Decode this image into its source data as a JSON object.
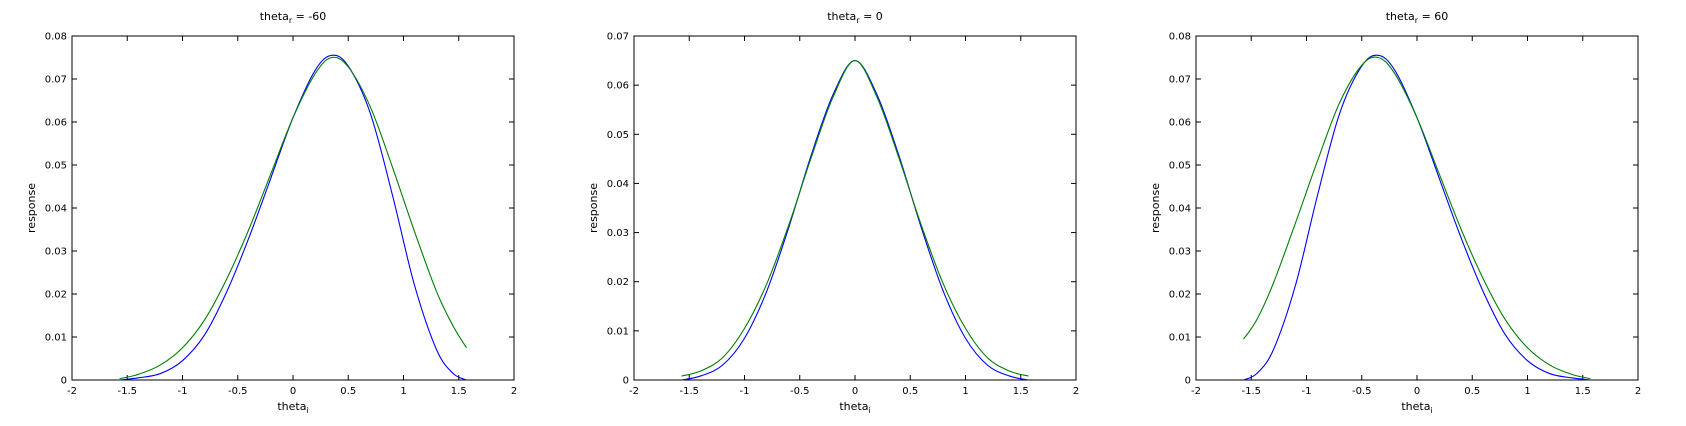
{
  "chart_data": [
    {
      "type": "line",
      "title": "theta",
      "title_sub": "r",
      "title_rest": " = -60",
      "xlabel": "theta",
      "xlabel_sub": "i",
      "ylabel": "response",
      "xlim": [
        -2,
        2
      ],
      "ylim": [
        0,
        0.08
      ],
      "xticks": [
        "-2",
        "-1.5",
        "-1",
        "-0.5",
        "0",
        "0.5",
        "1",
        "1.5",
        "2"
      ],
      "yticks": [
        "0",
        "0.01",
        "0.02",
        "0.03",
        "0.04",
        "0.05",
        "0.06",
        "0.07",
        "0.08"
      ],
      "grid": false,
      "series": [
        {
          "color": "#0000ff",
          "x": [
            -1.57,
            -1.4,
            -1.2,
            -1.0,
            -0.8,
            -0.6,
            -0.4,
            -0.2,
            0.0,
            0.2,
            0.35,
            0.5,
            0.7,
            0.9,
            1.1,
            1.3,
            1.45,
            1.57
          ],
          "y": [
            0.0,
            0.0005,
            0.0015,
            0.0045,
            0.0105,
            0.0205,
            0.033,
            0.047,
            0.061,
            0.072,
            0.0755,
            0.073,
            0.062,
            0.043,
            0.022,
            0.007,
            0.0015,
            0.0
          ]
        },
        {
          "color": "#008000",
          "x": [
            -1.57,
            -1.4,
            -1.2,
            -1.0,
            -0.8,
            -0.6,
            -0.4,
            -0.2,
            0.0,
            0.2,
            0.35,
            0.5,
            0.7,
            0.9,
            1.1,
            1.3,
            1.45,
            1.57
          ],
          "y": [
            0.0003,
            0.0013,
            0.0035,
            0.0075,
            0.014,
            0.0235,
            0.035,
            0.048,
            0.061,
            0.0712,
            0.075,
            0.0728,
            0.0635,
            0.0495,
            0.0345,
            0.0205,
            0.0125,
            0.0075
          ]
        }
      ]
    },
    {
      "type": "line",
      "title": "theta",
      "title_sub": "r",
      "title_rest": " = 0",
      "xlabel": "theta",
      "xlabel_sub": "i",
      "ylabel": "response",
      "xlim": [
        -2,
        2
      ],
      "ylim": [
        0,
        0.07
      ],
      "xticks": [
        "-2",
        "-1.5",
        "-1",
        "-0.5",
        "0",
        "0.5",
        "1",
        "1.5",
        "2"
      ],
      "yticks": [
        "0",
        "0.01",
        "0.02",
        "0.03",
        "0.04",
        "0.05",
        "0.06",
        "0.07"
      ],
      "grid": false,
      "series": [
        {
          "color": "#0000ff",
          "x": [
            -1.57,
            -1.4,
            -1.2,
            -1.0,
            -0.8,
            -0.6,
            -0.4,
            -0.2,
            0.0,
            0.2,
            0.4,
            0.6,
            0.8,
            1.0,
            1.2,
            1.4,
            1.57
          ],
          "y": [
            0.0,
            0.0008,
            0.003,
            0.0085,
            0.018,
            0.031,
            0.0455,
            0.058,
            0.065,
            0.058,
            0.0455,
            0.031,
            0.018,
            0.0085,
            0.003,
            0.0008,
            0.0
          ]
        },
        {
          "color": "#008000",
          "x": [
            -1.57,
            -1.4,
            -1.2,
            -1.0,
            -0.8,
            -0.6,
            -0.4,
            -0.2,
            0.0,
            0.2,
            0.4,
            0.6,
            0.8,
            1.0,
            1.2,
            1.4,
            1.57
          ],
          "y": [
            0.0008,
            0.0018,
            0.0045,
            0.0105,
            0.0195,
            0.0315,
            0.045,
            0.0575,
            0.065,
            0.0575,
            0.045,
            0.0315,
            0.0195,
            0.0105,
            0.0045,
            0.0018,
            0.0008
          ]
        }
      ]
    },
    {
      "type": "line",
      "title": "theta",
      "title_sub": "r",
      "title_rest": " = 60",
      "xlabel": "theta",
      "xlabel_sub": "i",
      "ylabel": "response",
      "xlim": [
        -2,
        2
      ],
      "ylim": [
        0,
        0.08
      ],
      "xticks": [
        "-2",
        "-1.5",
        "-1",
        "-0.5",
        "0",
        "0.5",
        "1",
        "1.5",
        "2"
      ],
      "yticks": [
        "0",
        "0.01",
        "0.02",
        "0.03",
        "0.04",
        "0.05",
        "0.06",
        "0.07",
        "0.08"
      ],
      "grid": false,
      "series": [
        {
          "color": "#0000ff",
          "x": [
            -1.57,
            -1.45,
            -1.3,
            -1.1,
            -0.9,
            -0.7,
            -0.5,
            -0.35,
            -0.2,
            0.0,
            0.2,
            0.4,
            0.6,
            0.8,
            1.0,
            1.2,
            1.4,
            1.57
          ],
          "y": [
            0.0,
            0.0015,
            0.007,
            0.022,
            0.043,
            0.062,
            0.073,
            0.0755,
            0.072,
            0.061,
            0.047,
            0.033,
            0.0205,
            0.0105,
            0.0045,
            0.0015,
            0.0005,
            0.0
          ]
        },
        {
          "color": "#008000",
          "x": [
            -1.57,
            -1.45,
            -1.3,
            -1.1,
            -0.9,
            -0.7,
            -0.5,
            -0.35,
            -0.2,
            0.0,
            0.2,
            0.4,
            0.6,
            0.8,
            1.0,
            1.2,
            1.4,
            1.57
          ],
          "y": [
            0.0095,
            0.014,
            0.0225,
            0.0365,
            0.051,
            0.0645,
            0.0732,
            0.075,
            0.0712,
            0.061,
            0.048,
            0.035,
            0.0235,
            0.014,
            0.0075,
            0.0035,
            0.0013,
            0.0003
          ]
        }
      ]
    }
  ]
}
